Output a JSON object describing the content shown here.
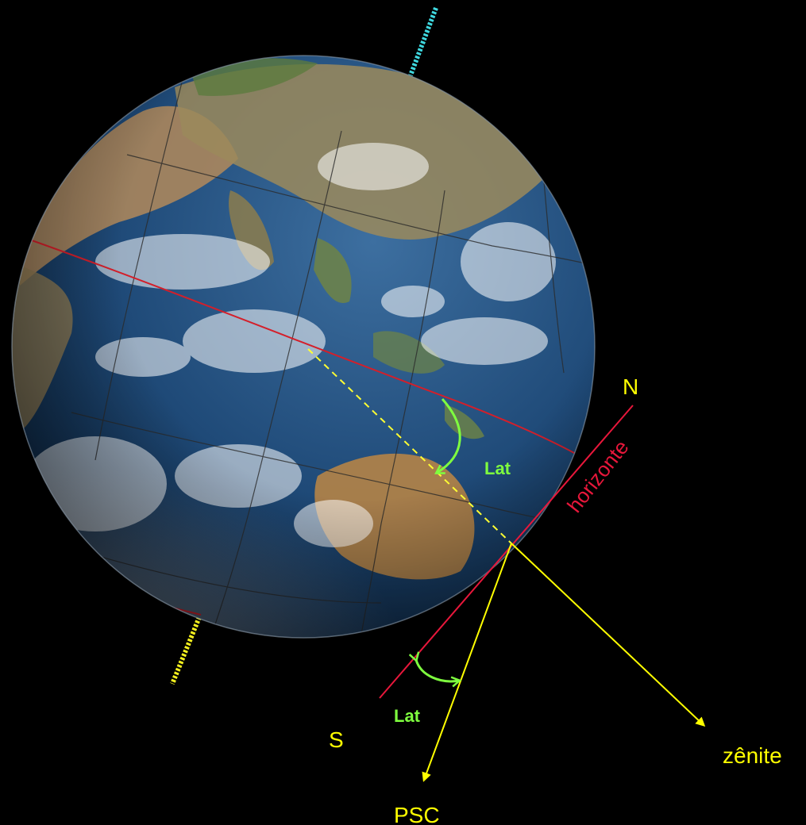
{
  "labels": {
    "north": "N",
    "south": "S",
    "horizon": "horizonte",
    "zenith": "zênite",
    "south_celestial_pole": "PSC",
    "latitude_on_globe": "Lat",
    "latitude_at_horizon": "Lat"
  },
  "colors": {
    "background": "#000000",
    "label_yellow": "#ffff00",
    "horizon_red": "#e8173b",
    "latitude_green": "#7fff3f",
    "north_axis_cyan": "#3fd9e0",
    "south_axis_yellow": "#f3f01e",
    "equator_red": "#d41f2a",
    "dashed_yellow": "#ffff33"
  },
  "icons": [
    "globe-earth",
    "north-axis-stub",
    "south-axis-stub",
    "arrow-zenith",
    "arrow-psc",
    "latitude-arc"
  ]
}
